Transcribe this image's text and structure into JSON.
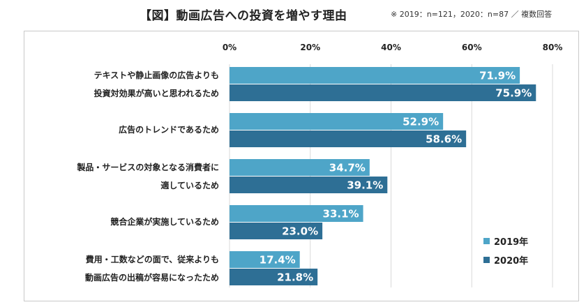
{
  "title": "【図】動画広告への投資を増やす理由",
  "note": "※ 2019：n=121，2020：n=87 ／ 複数回答",
  "colors": {
    "s2019": "#4ea5c8",
    "s2020": "#2e6f95"
  },
  "chart_data": {
    "type": "bar",
    "orientation": "horizontal",
    "title": "【図】動画広告への投資を増やす理由",
    "xlim": [
      0,
      80
    ],
    "ticks": [
      "0%",
      "20%",
      "40%",
      "60%",
      "80%"
    ],
    "tick_values": [
      0,
      20,
      40,
      60,
      80
    ],
    "grid": true,
    "legend_position": "bottom-right",
    "categories": [
      [
        "テキストや静止画像の広告よりも",
        "投資対効果が高いと思われるため"
      ],
      [
        "広告のトレンドであるため"
      ],
      [
        "製品・サービスの対象となる消費者に",
        "適しているため"
      ],
      [
        "競合企業が実施しているため"
      ],
      [
        "費用・工数などの面で、従来よりも",
        "動画広告の出稿が容易になったため"
      ]
    ],
    "series": [
      {
        "name": "2019年",
        "values": [
          71.9,
          52.9,
          34.7,
          33.1,
          17.4
        ],
        "labels": [
          "71.9%",
          "52.9%",
          "34.7%",
          "33.1%",
          "17.4%"
        ]
      },
      {
        "name": "2020年",
        "values": [
          75.9,
          58.6,
          39.1,
          23.0,
          21.8
        ],
        "labels": [
          "75.9%",
          "58.6%",
          "39.1%",
          "23.0%",
          "21.8%"
        ]
      }
    ]
  }
}
